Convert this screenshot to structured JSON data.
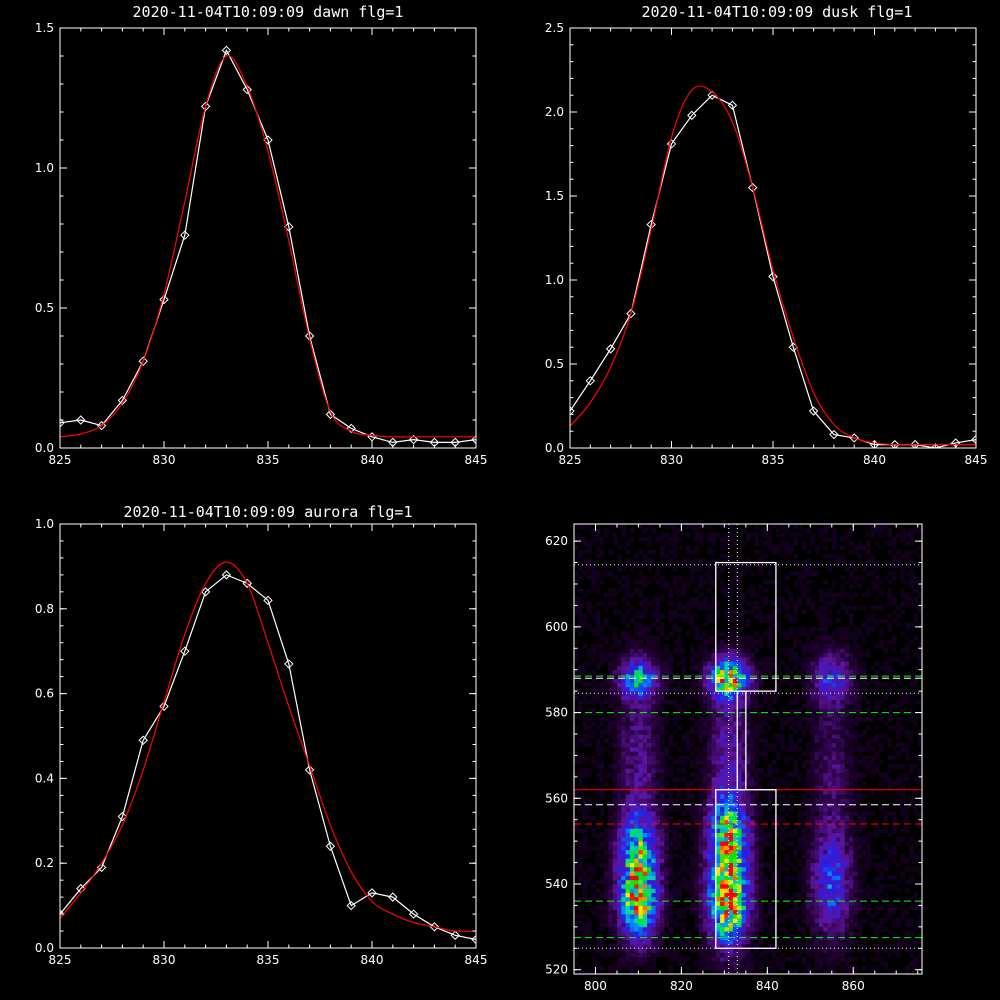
{
  "chart_data": [
    {
      "type": "line",
      "title": "2020-11-04T10:09:09 dawn flg=1",
      "xlim": [
        825,
        845
      ],
      "ylim": [
        0,
        1.5
      ],
      "xticks": [
        825,
        830,
        835,
        840,
        845
      ],
      "xtick_labels": [
        "825",
        "830",
        "835",
        "840",
        "845"
      ],
      "yticks": [
        0,
        0.5,
        1.0,
        1.5
      ],
      "ytick_labels": [
        "0.0",
        "0.5",
        "1.0",
        "1.5"
      ],
      "grid": false,
      "series": [
        {
          "style": "measured",
          "color": "#ffffff",
          "marker": "diamond",
          "x": [
            825,
            826,
            827,
            828,
            829,
            830,
            831,
            832,
            833,
            834,
            835,
            836,
            837,
            838,
            839,
            840,
            841,
            842,
            843,
            844,
            845
          ],
          "y": [
            0.09,
            0.1,
            0.08,
            0.17,
            0.31,
            0.53,
            0.76,
            1.22,
            1.42,
            1.28,
            1.1,
            0.79,
            0.4,
            0.12,
            0.07,
            0.04,
            0.02,
            0.03,
            0.02,
            0.02,
            0.03
          ]
        },
        {
          "style": "fit",
          "color": "#ff0000",
          "x": [
            825,
            826,
            827,
            828,
            829,
            830,
            831,
            832,
            833,
            834,
            835,
            836,
            837,
            838,
            839,
            840,
            841,
            842,
            843,
            844,
            845
          ],
          "y": [
            0.04,
            0.05,
            0.08,
            0.16,
            0.31,
            0.55,
            0.88,
            1.22,
            1.4,
            1.29,
            1.06,
            0.74,
            0.39,
            0.13,
            0.06,
            0.045,
            0.04,
            0.04,
            0.04,
            0.04,
            0.04
          ]
        }
      ]
    },
    {
      "type": "line",
      "title": "2020-11-04T10:09:09 dusk flg=1",
      "xlim": [
        825,
        845
      ],
      "ylim": [
        0,
        2.5
      ],
      "xticks": [
        825,
        830,
        835,
        840,
        845
      ],
      "xtick_labels": [
        "825",
        "830",
        "835",
        "840",
        "845"
      ],
      "yticks": [
        0,
        0.5,
        1.0,
        1.5,
        2.0,
        2.5
      ],
      "ytick_labels": [
        "0.0",
        "0.5",
        "1.0",
        "1.5",
        "2.0",
        "2.5"
      ],
      "grid": false,
      "series": [
        {
          "style": "measured",
          "color": "#ffffff",
          "marker": "diamond",
          "x": [
            825,
            826,
            827,
            828,
            829,
            830,
            831,
            832,
            833,
            834,
            835,
            836,
            837,
            838,
            839,
            840,
            841,
            842,
            843,
            844,
            845
          ],
          "y": [
            0.22,
            0.4,
            0.59,
            0.8,
            1.33,
            1.81,
            1.98,
            2.1,
            2.04,
            1.55,
            1.02,
            0.6,
            0.22,
            0.08,
            0.06,
            0.02,
            0.02,
            0.02,
            0.0,
            0.03,
            0.05
          ]
        },
        {
          "style": "fit",
          "color": "#ff0000",
          "x": [
            825,
            826,
            827,
            828,
            829,
            830,
            831,
            832,
            833,
            834,
            835,
            836,
            837,
            838,
            839,
            840,
            841,
            842,
            843,
            844,
            845
          ],
          "y": [
            0.13,
            0.27,
            0.48,
            0.8,
            1.3,
            1.85,
            2.13,
            2.12,
            1.94,
            1.55,
            1.06,
            0.66,
            0.33,
            0.14,
            0.06,
            0.03,
            0.02,
            0.02,
            0.02,
            0.02,
            0.02
          ]
        }
      ]
    },
    {
      "type": "line",
      "title": "2020-11-04T10:09:09 aurora flg=1",
      "xlim": [
        825,
        845
      ],
      "ylim": [
        0,
        1.0
      ],
      "xticks": [
        825,
        830,
        835,
        840,
        845
      ],
      "xtick_labels": [
        "825",
        "830",
        "835",
        "840",
        "845"
      ],
      "yticks": [
        0,
        0.2,
        0.4,
        0.6,
        0.8,
        1.0
      ],
      "ytick_labels": [
        "0.0",
        "0.2",
        "0.4",
        "0.6",
        "0.8",
        "1.0"
      ],
      "grid": false,
      "series": [
        {
          "style": "measured",
          "color": "#ffffff",
          "marker": "diamond",
          "x": [
            825,
            826,
            827,
            828,
            829,
            830,
            831,
            832,
            833,
            834,
            835,
            836,
            837,
            838,
            839,
            840,
            841,
            842,
            843,
            844,
            845
          ],
          "y": [
            0.08,
            0.14,
            0.19,
            0.31,
            0.49,
            0.57,
            0.7,
            0.84,
            0.88,
            0.86,
            0.82,
            0.67,
            0.42,
            0.24,
            0.1,
            0.13,
            0.12,
            0.08,
            0.05,
            0.03,
            0.02
          ]
        },
        {
          "style": "fit",
          "color": "#ff0000",
          "x": [
            825,
            826,
            827,
            828,
            829,
            830,
            831,
            832,
            833,
            834,
            835,
            836,
            837,
            838,
            839,
            840,
            841,
            842,
            843,
            844,
            845
          ],
          "y": [
            0.07,
            0.13,
            0.2,
            0.29,
            0.42,
            0.58,
            0.74,
            0.86,
            0.91,
            0.86,
            0.72,
            0.57,
            0.43,
            0.29,
            0.18,
            0.11,
            0.08,
            0.06,
            0.05,
            0.04,
            0.04
          ]
        }
      ]
    },
    {
      "type": "heatmap",
      "title": "",
      "xlim": [
        795,
        876
      ],
      "ylim": [
        519,
        624
      ],
      "xticks": [
        800,
        820,
        840,
        860
      ],
      "xtick_labels": [
        "800",
        "820",
        "840",
        "860"
      ],
      "yticks": [
        520,
        540,
        560,
        580,
        600,
        620
      ],
      "ytick_labels": [
        "520",
        "540",
        "560",
        "580",
        "600",
        "620"
      ],
      "colormap": "rainbow-on-black",
      "emission_columns": [
        {
          "x_center": 810,
          "x_width": 5,
          "blobs": [
            {
              "y": 536,
              "spread": 6,
              "peak": 0.75
            },
            {
              "y": 548,
              "spread": 6,
              "peak": 0.55
            },
            {
              "y": 588,
              "spread": 3,
              "peak": 0.5
            },
            {
              "y": 570,
              "spread": 12,
              "peak": 0.18
            }
          ]
        },
        {
          "x_center": 831,
          "x_width": 5,
          "blobs": [
            {
              "y": 537,
              "spread": 7,
              "peak": 1.0
            },
            {
              "y": 552,
              "spread": 6,
              "peak": 0.6
            },
            {
              "y": 588,
              "spread": 3,
              "peak": 0.8
            },
            {
              "y": 570,
              "spread": 12,
              "peak": 0.22
            }
          ]
        },
        {
          "x_center": 855,
          "x_width": 5,
          "blobs": [
            {
              "y": 540,
              "spread": 8,
              "peak": 0.35
            },
            {
              "y": 588,
              "spread": 4,
              "peak": 0.3
            },
            {
              "y": 565,
              "spread": 15,
              "peak": 0.12
            }
          ]
        }
      ],
      "boxes": [
        {
          "x0": 828,
          "x1": 842,
          "y0": 585,
          "y1": 615,
          "color": "#ffffff"
        },
        {
          "x0": 828,
          "x1": 842,
          "y0": 525,
          "y1": 562,
          "color": "#ffffff"
        },
        {
          "x0": 833,
          "x1": 835,
          "y0": 562,
          "y1": 585,
          "color": "#ffffff"
        }
      ],
      "hlines": [
        {
          "y": 614.5,
          "color": "#ffffff",
          "dash": "dotted"
        },
        {
          "y": 588,
          "color": "#ffffff",
          "dash": "dashed"
        },
        {
          "y": 588.5,
          "color": "#00ff00",
          "dash": "dashed"
        },
        {
          "y": 584.5,
          "color": "#ffffff",
          "dash": "dotted"
        },
        {
          "y": 580,
          "color": "#00ff00",
          "dash": "dashed"
        },
        {
          "y": 562,
          "color": "#ff0000",
          "dash": "solid"
        },
        {
          "y": 558.5,
          "color": "#ffffff",
          "dash": "dashed"
        },
        {
          "y": 554,
          "color": "#ff0000",
          "dash": "dashed"
        },
        {
          "y": 536,
          "color": "#00ff00",
          "dash": "dashed"
        },
        {
          "y": 527.5,
          "color": "#00ff00",
          "dash": "dashed"
        },
        {
          "y": 525,
          "color": "#ffffff",
          "dash": "dotted"
        }
      ],
      "vlines": [
        {
          "x": 831,
          "color": "#ffffff",
          "dash": "dotted"
        },
        {
          "x": 833,
          "color": "#ffffff",
          "dash": "dotted"
        }
      ]
    }
  ]
}
